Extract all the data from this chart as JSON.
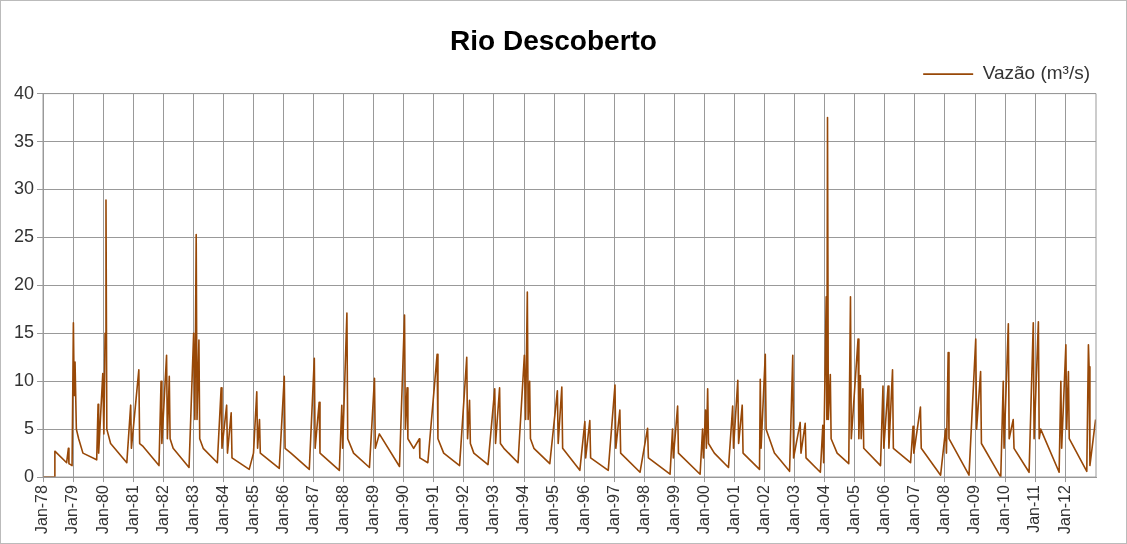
{
  "chart_data": {
    "type": "line",
    "title": "Rio Descoberto",
    "legend": "top right",
    "grid": true,
    "xlim": [
      "1978-01-01",
      "2013-01-10"
    ],
    "xticks": [
      {
        "value": "1978-01-01",
        "label": "Jan-78"
      },
      {
        "value": "1979-01-01",
        "label": "Jan-79"
      },
      {
        "value": "1980-01-01",
        "label": "Jan-80"
      },
      {
        "value": "1981-01-01",
        "label": "Jan-81"
      },
      {
        "value": "1982-01-01",
        "label": "Jan-82"
      },
      {
        "value": "1983-01-01",
        "label": "Jan-83"
      },
      {
        "value": "1984-01-01",
        "label": "Jan-84"
      },
      {
        "value": "1985-01-01",
        "label": "Jan-85"
      },
      {
        "value": "1986-01-01",
        "label": "Jan-86"
      },
      {
        "value": "1987-01-01",
        "label": "Jan-87"
      },
      {
        "value": "1988-01-01",
        "label": "Jan-88"
      },
      {
        "value": "1989-01-01",
        "label": "Jan-89"
      },
      {
        "value": "1990-01-01",
        "label": "Jan-90"
      },
      {
        "value": "1991-01-01",
        "label": "Jan-91"
      },
      {
        "value": "1992-01-01",
        "label": "Jan-92"
      },
      {
        "value": "1993-01-01",
        "label": "Jan-93"
      },
      {
        "value": "1994-01-01",
        "label": "Jan-94"
      },
      {
        "value": "1995-01-01",
        "label": "Jan-95"
      },
      {
        "value": "1996-01-01",
        "label": "Jan-96"
      },
      {
        "value": "1997-01-01",
        "label": "Jan-97"
      },
      {
        "value": "1998-01-01",
        "label": "Jan-98"
      },
      {
        "value": "1999-01-01",
        "label": "Jan-99"
      },
      {
        "value": "2000-01-01",
        "label": "Jan-00"
      },
      {
        "value": "2001-01-01",
        "label": "Jan-01"
      },
      {
        "value": "2002-01-01",
        "label": "Jan-02"
      },
      {
        "value": "2003-01-01",
        "label": "Jan-03"
      },
      {
        "value": "2004-01-01",
        "label": "Jan-04"
      },
      {
        "value": "2005-01-01",
        "label": "Jan-05"
      },
      {
        "value": "2006-01-01",
        "label": "Jan-06"
      },
      {
        "value": "2007-01-01",
        "label": "Jan-07"
      },
      {
        "value": "2008-01-01",
        "label": "Jan-08"
      },
      {
        "value": "2009-01-01",
        "label": "Jan-09"
      },
      {
        "value": "2010-01-01",
        "label": "Jan-10"
      },
      {
        "value": "2011-01-01",
        "label": "Jan-11"
      },
      {
        "value": "2012-01-01",
        "label": "Jan-12"
      }
    ],
    "ylim": [
      0,
      40
    ],
    "yticks": [
      0,
      5,
      10,
      15,
      20,
      25,
      30,
      35,
      40
    ],
    "x": [
      "1978-01-01",
      "1978-05-20",
      "1978-05-25",
      "1978-10-15",
      "1978-11-05",
      "1978-11-12",
      "1978-12-20",
      "1979-01-05",
      "1979-01-15",
      "1979-01-25",
      "1979-02-10",
      "1979-03-10",
      "1979-05-01",
      "1979-10-15",
      "1979-11-01",
      "1979-11-08",
      "1979-12-28",
      "1980-01-10",
      "1980-01-25",
      "1980-02-05",
      "1980-02-15",
      "1980-04-01",
      "1980-10-15",
      "1980-12-01",
      "1980-12-10",
      "1981-03-10",
      "1981-03-20",
      "1981-05-01",
      "1981-11-10",
      "1981-12-05",
      "1981-12-15",
      "1982-02-10",
      "1982-02-20",
      "1982-03-15",
      "1982-03-25",
      "1982-05-01",
      "1982-11-10",
      "1983-01-05",
      "1983-01-20",
      "1983-02-05",
      "1983-02-15",
      "1983-03-10",
      "1983-03-20",
      "1983-05-01",
      "1983-10-20",
      "1983-12-05",
      "1983-12-15",
      "1984-02-10",
      "1984-02-20",
      "1984-04-05",
      "1984-04-15",
      "1984-11-10",
      "1985-01-01",
      "1985-02-10",
      "1985-02-20",
      "1985-03-15",
      "1985-03-25",
      "1985-11-10",
      "1986-01-10",
      "1986-01-20",
      "1986-04-01",
      "1986-11-10",
      "1987-01-10",
      "1987-01-20",
      "1987-03-10",
      "1987-03-20",
      "1987-11-10",
      "1987-12-10",
      "1987-12-20",
      "1988-02-10",
      "1988-02-20",
      "1988-05-01",
      "1988-11-10",
      "1989-01-10",
      "1989-01-20",
      "1989-03-10",
      "1989-11-10",
      "1990-01-10",
      "1990-01-20",
      "1990-02-10",
      "1990-02-20",
      "1990-05-01",
      "1990-07-10",
      "1990-07-15",
      "1990-10-20",
      "1991-02-10",
      "1991-02-20",
      "1991-05-01",
      "1991-11-10",
      "1992-02-05",
      "1992-02-15",
      "1992-03-10",
      "1992-03-20",
      "1992-05-01",
      "1992-10-20",
      "1993-01-10",
      "1993-01-20",
      "1993-03-10",
      "1993-03-20",
      "1993-05-01",
      "1993-10-20",
      "1994-01-05",
      "1994-01-20",
      "1994-02-10",
      "1994-02-20",
      "1994-03-10",
      "1994-03-20",
      "1994-05-01",
      "1994-11-10",
      "1995-02-10",
      "1995-02-20",
      "1995-04-05",
      "1995-04-15",
      "1995-11-10",
      "1996-01-10",
      "1996-01-20",
      "1996-03-10",
      "1996-03-20",
      "1996-10-20",
      "1997-01-10",
      "1997-01-20",
      "1997-03-10",
      "1997-03-20",
      "1997-11-10",
      "1998-02-10",
      "1998-02-20",
      "1998-11-10",
      "1998-12-10",
      "1998-12-20",
      "1999-02-10",
      "1999-02-20",
      "1999-11-10",
      "1999-12-10",
      "1999-12-20",
      "2000-01-15",
      "2000-01-25",
      "2000-02-10",
      "2000-02-20",
      "2000-05-01",
      "2000-10-20",
      "2000-12-10",
      "2000-12-20",
      "2001-02-10",
      "2001-02-20",
      "2001-04-05",
      "2001-04-15",
      "2001-11-01",
      "2001-11-10",
      "2001-11-20",
      "2002-01-10",
      "2002-01-20",
      "2002-05-01",
      "2002-11-01",
      "2002-12-10",
      "2002-12-20",
      "2003-03-10",
      "2003-03-20",
      "2003-05-10",
      "2003-05-20",
      "2003-11-10",
      "2003-12-10",
      "2003-12-20",
      "2004-01-20",
      "2004-01-28",
      "2004-02-05",
      "2004-02-15",
      "2004-03-10",
      "2004-03-20",
      "2004-06-01",
      "2004-10-20",
      "2004-11-10",
      "2004-11-20",
      "2005-02-10",
      "2005-02-20",
      "2005-03-10",
      "2005-03-20",
      "2005-04-10",
      "2005-04-20",
      "2005-11-10",
      "2005-12-10",
      "2005-12-20",
      "2006-02-10",
      "2006-02-20",
      "2006-04-05",
      "2006-04-15",
      "2006-11-10",
      "2006-12-10",
      "2006-12-20",
      "2007-03-10",
      "2007-03-20",
      "2007-11-10",
      "2008-01-10",
      "2008-01-20",
      "2008-02-10",
      "2008-02-20",
      "2008-10-20",
      "2009-01-10",
      "2009-01-20",
      "2009-03-10",
      "2009-03-20",
      "2009-11-10",
      "2009-12-10",
      "2009-12-20",
      "2010-02-10",
      "2010-02-20",
      "2010-04-10",
      "2010-04-20",
      "2010-10-20",
      "2010-12-10",
      "2010-12-20",
      "2011-02-10",
      "2011-02-20",
      "2011-03-10",
      "2011-10-20",
      "2011-11-10",
      "2011-11-20",
      "2012-01-10",
      "2012-01-20",
      "2012-02-10",
      "2012-02-20",
      "2012-09-20",
      "2012-10-10",
      "2012-10-18",
      "2012-10-28",
      "2013-01-05"
    ],
    "series": [
      {
        "name": "Vazão (m³/s)",
        "color": "#984807",
        "values": [
          0,
          0,
          2.7,
          1.5,
          3.0,
          1.4,
          1.2,
          16.1,
          8.5,
          12,
          5,
          4,
          2.5,
          1.8,
          7.6,
          2.5,
          10.8,
          4.5,
          15,
          28.9,
          5,
          3.5,
          1.5,
          7.5,
          3,
          11.2,
          3.5,
          3.2,
          1.2,
          10,
          3.5,
          12.7,
          4,
          10.5,
          4,
          3,
          1.0,
          15,
          6,
          25.3,
          6,
          14.3,
          4,
          3,
          1.5,
          9.3,
          3,
          7.5,
          2.5,
          6.7,
          2,
          0.8,
          2.5,
          8.9,
          3,
          6,
          2.5,
          0.9,
          10.5,
          3,
          2.5,
          0.8,
          12.4,
          3,
          7.8,
          2.5,
          0.7,
          7.5,
          3,
          17.1,
          4,
          2.5,
          1.0,
          10.3,
          3,
          4.5,
          1.1,
          16.9,
          5,
          9.3,
          4,
          3,
          4,
          2,
          1.5,
          12.8,
          4,
          2.5,
          1.2,
          12.5,
          4,
          8,
          3.5,
          2.5,
          1.3,
          9.2,
          3.5,
          9.3,
          3.5,
          3,
          1.5,
          12.7,
          6,
          19.3,
          6,
          10,
          4,
          3,
          1.4,
          9,
          3.5,
          9.4,
          3,
          0.7,
          5.8,
          2,
          5.9,
          2,
          0.7,
          9.6,
          3,
          7,
          2.5,
          0.5,
          5.1,
          2,
          0.3,
          5,
          2,
          7.4,
          2.5,
          0.3,
          5,
          2,
          7,
          3,
          9.2,
          3.5,
          2.5,
          1.0,
          7.4,
          3,
          10.1,
          3.5,
          7.5,
          2.5,
          0.8,
          10.2,
          3,
          12.8,
          5,
          2.5,
          0.6,
          12.7,
          2,
          5.7,
          2.5,
          5.6,
          2,
          0.5,
          5.4,
          1.5,
          18.8,
          6,
          37.5,
          6,
          10.7,
          4,
          2.5,
          1.4,
          18.8,
          4,
          14.4,
          4,
          10.6,
          4,
          9.2,
          3,
          1.2,
          9.5,
          3,
          9.5,
          3,
          11.2,
          3,
          1.5,
          5.3,
          2.5,
          7.3,
          3,
          0.2,
          5,
          2.5,
          13,
          4,
          0.2,
          14.4,
          5,
          11,
          3.5,
          0,
          10,
          3,
          16,
          4,
          6,
          3,
          0.5,
          16.1,
          4,
          16.2,
          4,
          5,
          0.5,
          10,
          3,
          13.8,
          5,
          11,
          4,
          0.6,
          13.8,
          11.5,
          1.2,
          6
        ]
      }
    ]
  }
}
